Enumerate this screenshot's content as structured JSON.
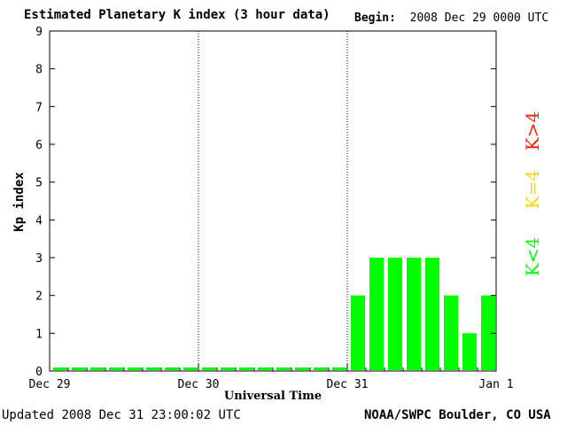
{
  "header": {
    "title": "Estimated Planetary K index (3 hour data)",
    "begin_label": "Begin:",
    "begin_value": "2008 Dec 29 0000 UTC"
  },
  "footer": {
    "updated_label": "Updated",
    "updated_value": "2008 Dec 31 23:00:02 UTC",
    "credit": "NOAA/SWPC Boulder, CO USA"
  },
  "legend": {
    "items": [
      {
        "label": "K<4",
        "color": "#00ff00"
      },
      {
        "label": "K=4",
        "color": "#ffd700"
      },
      {
        "label": "K>4",
        "color": "#ff2000"
      }
    ]
  },
  "chart_data": {
    "type": "bar",
    "title": "Estimated Planetary K index (3 hour data)",
    "xlabel": "Universal Time",
    "ylabel": "Kp index",
    "ylim": [
      0,
      9
    ],
    "yticks": [
      0,
      1,
      2,
      3,
      4,
      5,
      6,
      7,
      8,
      9
    ],
    "xticks": [
      "Dec 29",
      "Dec 30",
      "Dec 31",
      "Jan 1"
    ],
    "interval_hours": 3,
    "values": [
      0,
      0,
      0,
      0,
      0,
      0,
      0,
      0,
      0,
      0,
      0,
      0,
      0,
      0,
      0,
      0,
      2,
      3,
      3,
      3,
      3,
      2,
      1,
      2
    ],
    "bar_color": "#00ff00",
    "grid": "vertical dotted lines at day boundaries"
  }
}
